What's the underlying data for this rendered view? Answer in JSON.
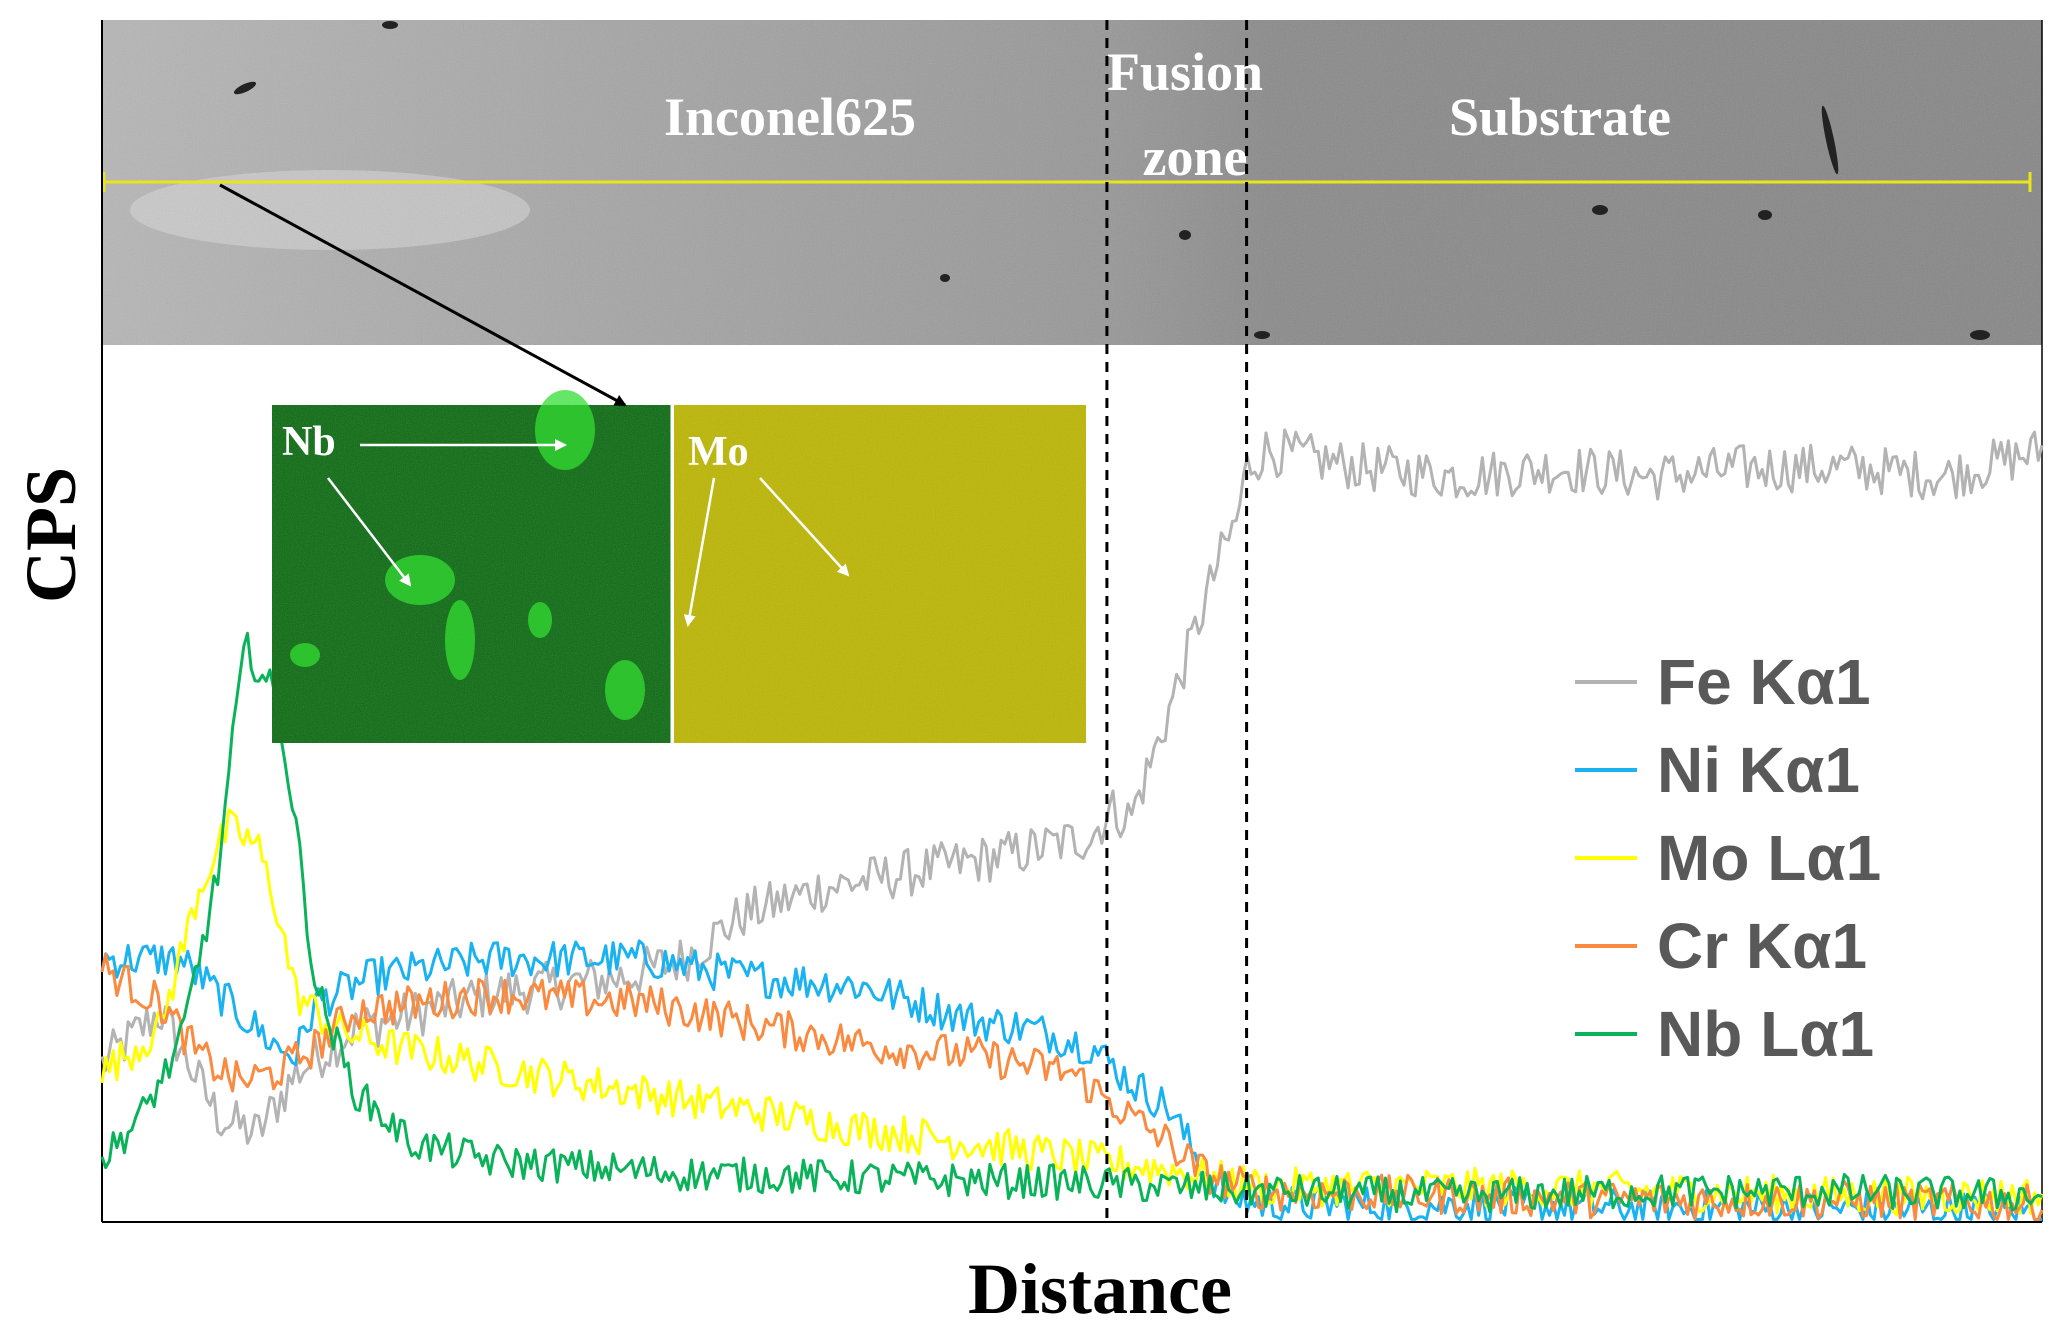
{
  "chart_data": {
    "type": "line",
    "title": "",
    "xlabel": "Distance",
    "ylabel": "CPS",
    "x_range": [
      0,
      1
    ],
    "y_range": [
      0,
      1
    ],
    "grid": false,
    "legend_position": "right",
    "series": [
      {
        "name": "Fe Kα1",
        "color": "#b3b3b3",
        "noise": 0.028,
        "points": [
          [
            0.0,
            0.18
          ],
          [
            0.03,
            0.24
          ],
          [
            0.06,
            0.12
          ],
          [
            0.08,
            0.1
          ],
          [
            0.1,
            0.17
          ],
          [
            0.13,
            0.22
          ],
          [
            0.2,
            0.26
          ],
          [
            0.27,
            0.28
          ],
          [
            0.3,
            0.3
          ],
          [
            0.33,
            0.35
          ],
          [
            0.37,
            0.38
          ],
          [
            0.42,
            0.4
          ],
          [
            0.47,
            0.42
          ],
          [
            0.51,
            0.44
          ],
          [
            0.52,
            0.47
          ],
          [
            0.53,
            0.46
          ],
          [
            0.545,
            0.55
          ],
          [
            0.56,
            0.65
          ],
          [
            0.575,
            0.75
          ],
          [
            0.585,
            0.8
          ],
          [
            0.59,
            0.86
          ],
          [
            0.6,
            0.88
          ],
          [
            0.65,
            0.86
          ],
          [
            0.7,
            0.85
          ],
          [
            0.75,
            0.86
          ],
          [
            0.8,
            0.85
          ],
          [
            0.85,
            0.86
          ],
          [
            0.9,
            0.86
          ],
          [
            0.95,
            0.85
          ],
          [
            1.0,
            0.88
          ]
        ]
      },
      {
        "name": "Ni Kα1",
        "color": "#1ab2f0",
        "noise": 0.022,
        "points": [
          [
            0.0,
            0.3
          ],
          [
            0.04,
            0.3
          ],
          [
            0.06,
            0.26
          ],
          [
            0.09,
            0.2
          ],
          [
            0.1,
            0.19
          ],
          [
            0.11,
            0.25
          ],
          [
            0.14,
            0.28
          ],
          [
            0.2,
            0.3
          ],
          [
            0.28,
            0.3
          ],
          [
            0.33,
            0.28
          ],
          [
            0.39,
            0.27
          ],
          [
            0.45,
            0.23
          ],
          [
            0.48,
            0.22
          ],
          [
            0.51,
            0.2
          ],
          [
            0.53,
            0.16
          ],
          [
            0.55,
            0.13
          ],
          [
            0.565,
            0.07
          ],
          [
            0.58,
            0.03
          ],
          [
            0.6,
            0.02
          ],
          [
            0.7,
            0.02
          ],
          [
            0.8,
            0.015
          ],
          [
            0.9,
            0.015
          ],
          [
            1.0,
            0.012
          ]
        ]
      },
      {
        "name": "Mo Lα1",
        "color": "#ffff00",
        "noise": 0.022,
        "points": [
          [
            0.0,
            0.17
          ],
          [
            0.03,
            0.22
          ],
          [
            0.05,
            0.38
          ],
          [
            0.065,
            0.45
          ],
          [
            0.08,
            0.43
          ],
          [
            0.09,
            0.36
          ],
          [
            0.1,
            0.26
          ],
          [
            0.12,
            0.22
          ],
          [
            0.15,
            0.2
          ],
          [
            0.22,
            0.17
          ],
          [
            0.3,
            0.14
          ],
          [
            0.38,
            0.11
          ],
          [
            0.45,
            0.09
          ],
          [
            0.51,
            0.07
          ],
          [
            0.55,
            0.06
          ],
          [
            0.57,
            0.05
          ],
          [
            0.6,
            0.04
          ],
          [
            0.7,
            0.04
          ],
          [
            0.8,
            0.035
          ],
          [
            0.9,
            0.03
          ],
          [
            1.0,
            0.03
          ]
        ]
      },
      {
        "name": "Cr Kα1",
        "color": "#f98a40",
        "noise": 0.022,
        "points": [
          [
            0.0,
            0.29
          ],
          [
            0.03,
            0.25
          ],
          [
            0.05,
            0.19
          ],
          [
            0.07,
            0.16
          ],
          [
            0.09,
            0.17
          ],
          [
            0.11,
            0.2
          ],
          [
            0.13,
            0.24
          ],
          [
            0.2,
            0.26
          ],
          [
            0.28,
            0.25
          ],
          [
            0.35,
            0.22
          ],
          [
            0.4,
            0.2
          ],
          [
            0.45,
            0.19
          ],
          [
            0.5,
            0.17
          ],
          [
            0.53,
            0.12
          ],
          [
            0.55,
            0.09
          ],
          [
            0.565,
            0.06
          ],
          [
            0.58,
            0.045
          ],
          [
            0.6,
            0.035
          ],
          [
            0.7,
            0.03
          ],
          [
            0.8,
            0.025
          ],
          [
            0.9,
            0.025
          ],
          [
            1.0,
            0.02
          ]
        ]
      },
      {
        "name": "Nb Lα1",
        "color": "#0ab35a",
        "noise": 0.02,
        "points": [
          [
            0.0,
            0.07
          ],
          [
            0.02,
            0.12
          ],
          [
            0.04,
            0.2
          ],
          [
            0.06,
            0.4
          ],
          [
            0.07,
            0.6
          ],
          [
            0.075,
            0.66
          ],
          [
            0.08,
            0.63
          ],
          [
            0.09,
            0.6
          ],
          [
            0.1,
            0.45
          ],
          [
            0.11,
            0.27
          ],
          [
            0.13,
            0.15
          ],
          [
            0.16,
            0.09
          ],
          [
            0.2,
            0.07
          ],
          [
            0.3,
            0.055
          ],
          [
            0.4,
            0.05
          ],
          [
            0.5,
            0.045
          ],
          [
            0.55,
            0.04
          ],
          [
            0.6,
            0.035
          ],
          [
            0.7,
            0.03
          ],
          [
            0.8,
            0.035
          ],
          [
            0.9,
            0.035
          ],
          [
            1.0,
            0.03
          ]
        ]
      }
    ],
    "dividers_x": [
      0.518,
      0.59
    ]
  },
  "micrograph": {
    "labels": [
      "Inconel625",
      "Fusion",
      "zone",
      "Substrate"
    ]
  },
  "inset": {
    "nb_label": "Nb",
    "mo_label": "Mo"
  },
  "colors": {
    "map_green": "#0a6a10",
    "map_yellow": "#bcb600",
    "scan_line": "#e8e619"
  }
}
